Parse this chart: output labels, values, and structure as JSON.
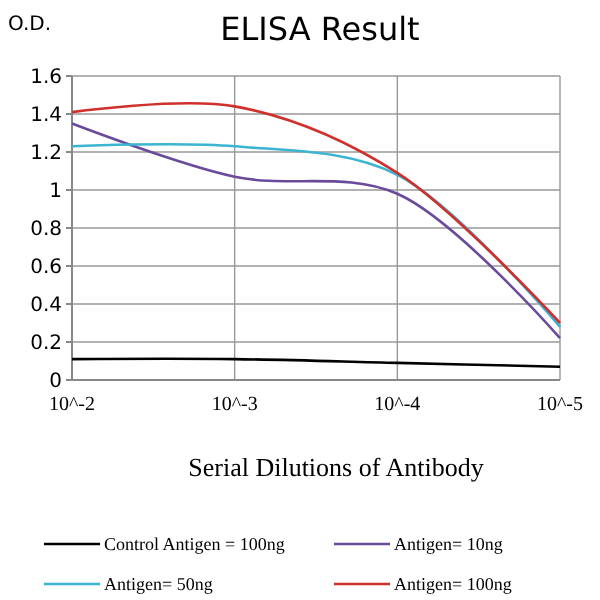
{
  "chart_data": {
    "type": "line",
    "title": "ELISA Result",
    "ylabel": "O.D.",
    "xlabel": "Serial Dilutions of Antibody",
    "categories": [
      "10^-2",
      "10^-3",
      "10^-4",
      "10^-5"
    ],
    "series": [
      {
        "name": "Control Antigen = 100ng",
        "color": "#000000",
        "values": [
          0.11,
          0.11,
          0.09,
          0.07
        ]
      },
      {
        "name": "Antigen= 10ng",
        "color": "#6a4a9a",
        "values": [
          1.35,
          1.07,
          0.98,
          0.22
        ]
      },
      {
        "name": "Antigen= 50ng",
        "color": "#3cb4d2",
        "values": [
          1.23,
          1.23,
          1.08,
          0.28
        ]
      },
      {
        "name": "Antigen= 100ng",
        "color": "#d0302c",
        "values": [
          1.41,
          1.44,
          1.09,
          0.3
        ]
      }
    ],
    "ylim": [
      0,
      1.6
    ],
    "yticks": [
      0,
      0.2,
      0.4,
      0.6,
      0.8,
      1,
      1.2,
      1.4,
      1.6
    ],
    "grid": true,
    "legend": "bottom",
    "marker": "none",
    "line_style": "solid"
  }
}
